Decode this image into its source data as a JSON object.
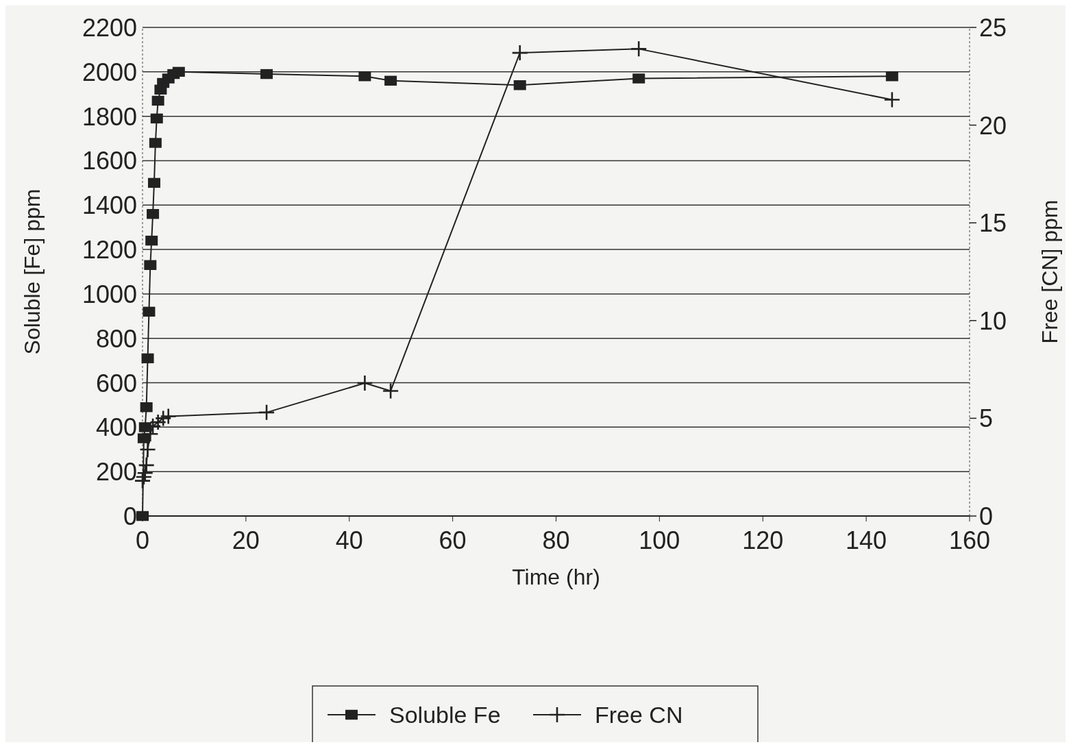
{
  "chart_data": {
    "type": "line",
    "xlabel": "Time (hr)",
    "ylabel": "Soluble [Fe] ppm",
    "y2label": "Free [CN] ppm",
    "xlim": [
      0,
      160
    ],
    "xticks": [
      0,
      20,
      40,
      60,
      80,
      100,
      120,
      140,
      160
    ],
    "ylim": [
      0,
      2200
    ],
    "yticks": [
      0,
      200,
      400,
      600,
      800,
      1000,
      1200,
      1400,
      1600,
      1800,
      2000,
      2200
    ],
    "y2lim": [
      0,
      25
    ],
    "y2ticks": [
      0,
      5,
      10,
      15,
      20,
      25
    ],
    "grid": "y",
    "legend": "bottom",
    "line_style": "solid",
    "series": [
      {
        "name": "Soluble Fe",
        "color": "#222222",
        "marker": "square",
        "x": [
          0,
          0.25,
          0.5,
          0.75,
          1,
          1.25,
          1.5,
          1.75,
          2,
          2.25,
          2.5,
          2.75,
          3,
          3.5,
          4,
          5,
          6,
          7,
          24,
          43,
          48,
          73,
          96,
          145
        ],
        "values": [
          0,
          350,
          400,
          490,
          710,
          920,
          1130,
          1240,
          1360,
          1500,
          1680,
          1790,
          1870,
          1920,
          1950,
          1970,
          1990,
          2000,
          1990,
          1980,
          1960,
          1940,
          1970,
          1980
        ]
      },
      {
        "name": "Free CN",
        "color": "#222222",
        "marker": "cross",
        "axis": "y2",
        "x": [
          0,
          0.25,
          0.5,
          0.75,
          1,
          1.5,
          2,
          3,
          4,
          5,
          24,
          43,
          48,
          73,
          96,
          145
        ],
        "values": [
          1.8,
          2.0,
          2.2,
          2.6,
          3.4,
          4.2,
          4.6,
          4.8,
          5.0,
          5.1,
          5.3,
          6.8,
          6.4,
          23.7,
          23.9,
          21.3
        ]
      }
    ]
  }
}
